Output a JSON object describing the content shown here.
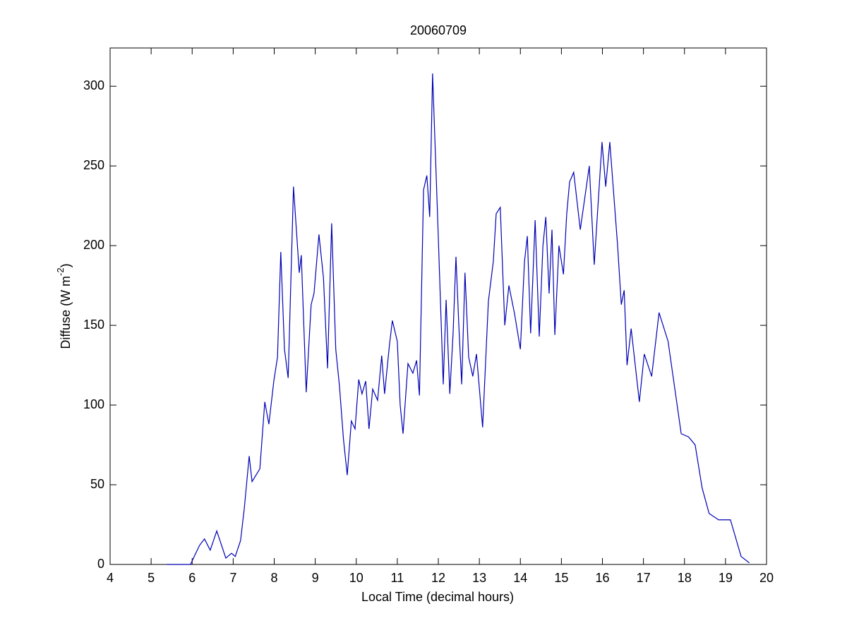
{
  "chart_data": {
    "type": "line",
    "title": "20060709",
    "xlabel": "Local Time (decimal hours)",
    "ylabel": [
      "Diffuse (W m",
      "-2",
      ")"
    ],
    "xlim": [
      4,
      20
    ],
    "xticks": [
      4,
      5,
      6,
      7,
      8,
      9,
      10,
      11,
      12,
      13,
      14,
      15,
      16,
      17,
      18,
      19,
      20
    ],
    "ylim": [
      0,
      324
    ],
    "yticks": [
      0,
      50,
      100,
      150,
      200,
      250,
      300
    ],
    "grid": false,
    "series": [
      {
        "color": "#0000b4",
        "x": [
          5.38,
          5.96,
          6.05,
          6.18,
          6.3,
          6.44,
          6.6,
          6.82,
          6.96,
          7.05,
          7.18,
          7.27,
          7.39,
          7.46,
          7.65,
          7.77,
          7.87,
          7.99,
          8.08,
          8.16,
          8.25,
          8.34,
          8.47,
          8.61,
          8.66,
          8.78,
          8.9,
          8.97,
          9.09,
          9.2,
          9.3,
          9.4,
          9.5,
          9.59,
          9.69,
          9.78,
          9.88,
          9.97,
          10.06,
          10.14,
          10.23,
          10.31,
          10.4,
          10.52,
          10.62,
          10.69,
          10.81,
          10.88,
          11.0,
          11.07,
          11.14,
          11.26,
          11.38,
          11.47,
          11.54,
          11.64,
          11.72,
          11.79,
          11.86,
          11.98,
          12.12,
          12.19,
          12.28,
          12.36,
          12.43,
          12.5,
          12.57,
          12.65,
          12.74,
          12.84,
          12.93,
          13.08,
          13.22,
          13.34,
          13.41,
          13.51,
          13.62,
          13.72,
          13.86,
          14.0,
          14.1,
          14.17,
          14.25,
          14.36,
          14.46,
          14.55,
          14.62,
          14.7,
          14.77,
          14.84,
          14.94,
          15.05,
          15.13,
          15.2,
          15.3,
          15.46,
          15.68,
          15.8,
          15.99,
          16.08,
          16.18,
          16.37,
          16.46,
          16.53,
          16.6,
          16.7,
          16.9,
          17.02,
          17.2,
          17.38,
          17.6,
          17.92,
          18.1,
          18.26,
          18.43,
          18.6,
          18.83,
          19.12,
          19.38,
          19.58
        ],
        "values": [
          0,
          0,
          5,
          12,
          16,
          9,
          21,
          4,
          7,
          5,
          15,
          35,
          68,
          52,
          60,
          102,
          88,
          115,
          130,
          196,
          135,
          117,
          237,
          183,
          194,
          108,
          163,
          170,
          207,
          180,
          123,
          214,
          135,
          112,
          78,
          56,
          90,
          85,
          116,
          107,
          115,
          85,
          110,
          103,
          131,
          107,
          138,
          153,
          140,
          100,
          82,
          126,
          120,
          128,
          106,
          235,
          244,
          218,
          308,
          220,
          113,
          166,
          107,
          145,
          193,
          150,
          113,
          183,
          130,
          118,
          132,
          86,
          165,
          190,
          220,
          224,
          150,
          175,
          157,
          135,
          190,
          206,
          145,
          216,
          143,
          200,
          218,
          170,
          210,
          144,
          200,
          182,
          220,
          240,
          246,
          210,
          250,
          188,
          265,
          237,
          265,
          200,
          163,
          172,
          125,
          148,
          102,
          132,
          118,
          158,
          140,
          82,
          80,
          75,
          48,
          32,
          28,
          28,
          5,
          1
        ]
      }
    ]
  }
}
